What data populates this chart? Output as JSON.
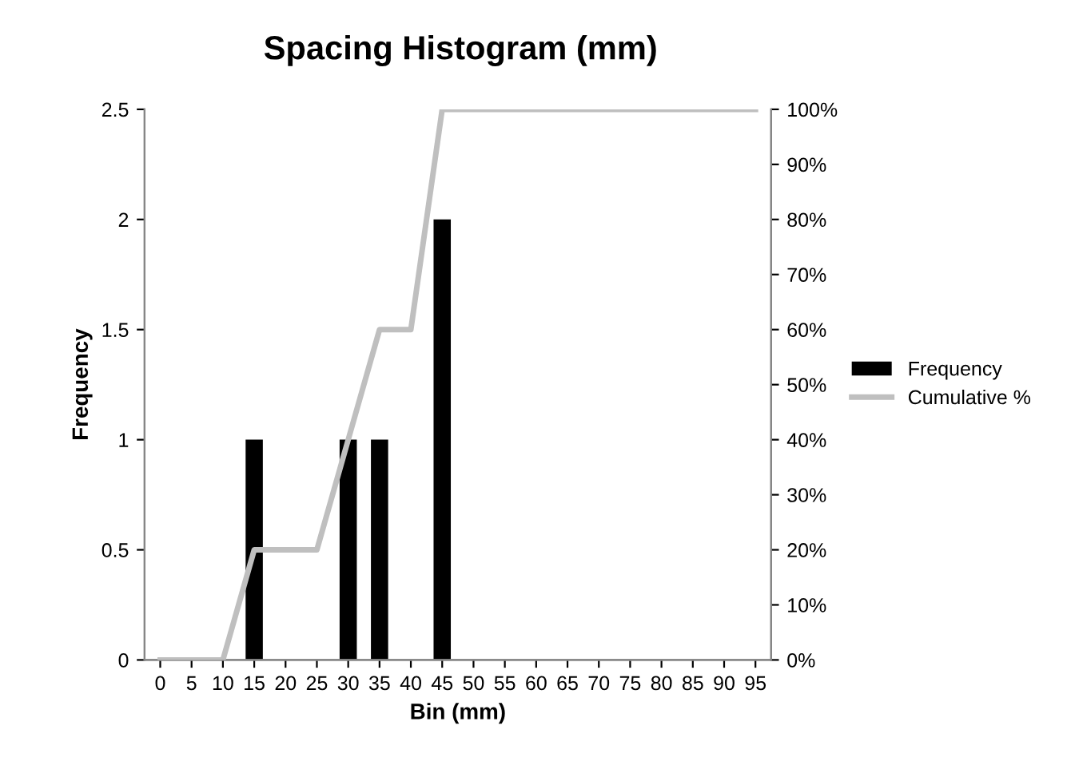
{
  "chart_data": {
    "type": "bar",
    "title": "Spacing Histogram (mm)",
    "xlabel": "Bin (mm)",
    "ylabel": "Frequency",
    "categories": [
      "0",
      "5",
      "10",
      "15",
      "20",
      "25",
      "30",
      "35",
      "40",
      "45",
      "50",
      "55",
      "60",
      "65",
      "70",
      "75",
      "80",
      "85",
      "90",
      "95"
    ],
    "series": [
      {
        "name": "Frequency",
        "color": "#000000",
        "values": [
          0,
          0,
          0,
          1,
          0,
          0,
          1,
          1,
          0,
          2,
          0,
          0,
          0,
          0,
          0,
          0,
          0,
          0,
          0,
          0
        ]
      },
      {
        "name": "Cumulative %",
        "type": "line",
        "axis": "y2",
        "color": "#bfbfbf",
        "values": [
          0,
          0,
          0,
          20,
          20,
          20,
          40,
          60,
          60,
          100,
          100,
          100,
          100,
          100,
          100,
          100,
          100,
          100,
          100,
          100
        ]
      }
    ],
    "ylim": [
      0,
      2.5
    ],
    "yticks": [
      0,
      0.5,
      1,
      1.5,
      2,
      2.5
    ],
    "y2lim": [
      0,
      100
    ],
    "y2ticks": [
      {
        "value": 0,
        "label": "0%"
      },
      {
        "value": 10,
        "label": "10%"
      },
      {
        "value": 20,
        "label": "20%"
      },
      {
        "value": 30,
        "label": "30%"
      },
      {
        "value": 40,
        "label": "40%"
      },
      {
        "value": 50,
        "label": "50%"
      },
      {
        "value": 60,
        "label": "60%"
      },
      {
        "value": 70,
        "label": "70%"
      },
      {
        "value": 80,
        "label": "80%"
      },
      {
        "value": 90,
        "label": "90%"
      },
      {
        "value": 100,
        "label": "100%"
      }
    ],
    "legend": "right",
    "grid": false,
    "marker": "none",
    "line_style": "solid"
  }
}
